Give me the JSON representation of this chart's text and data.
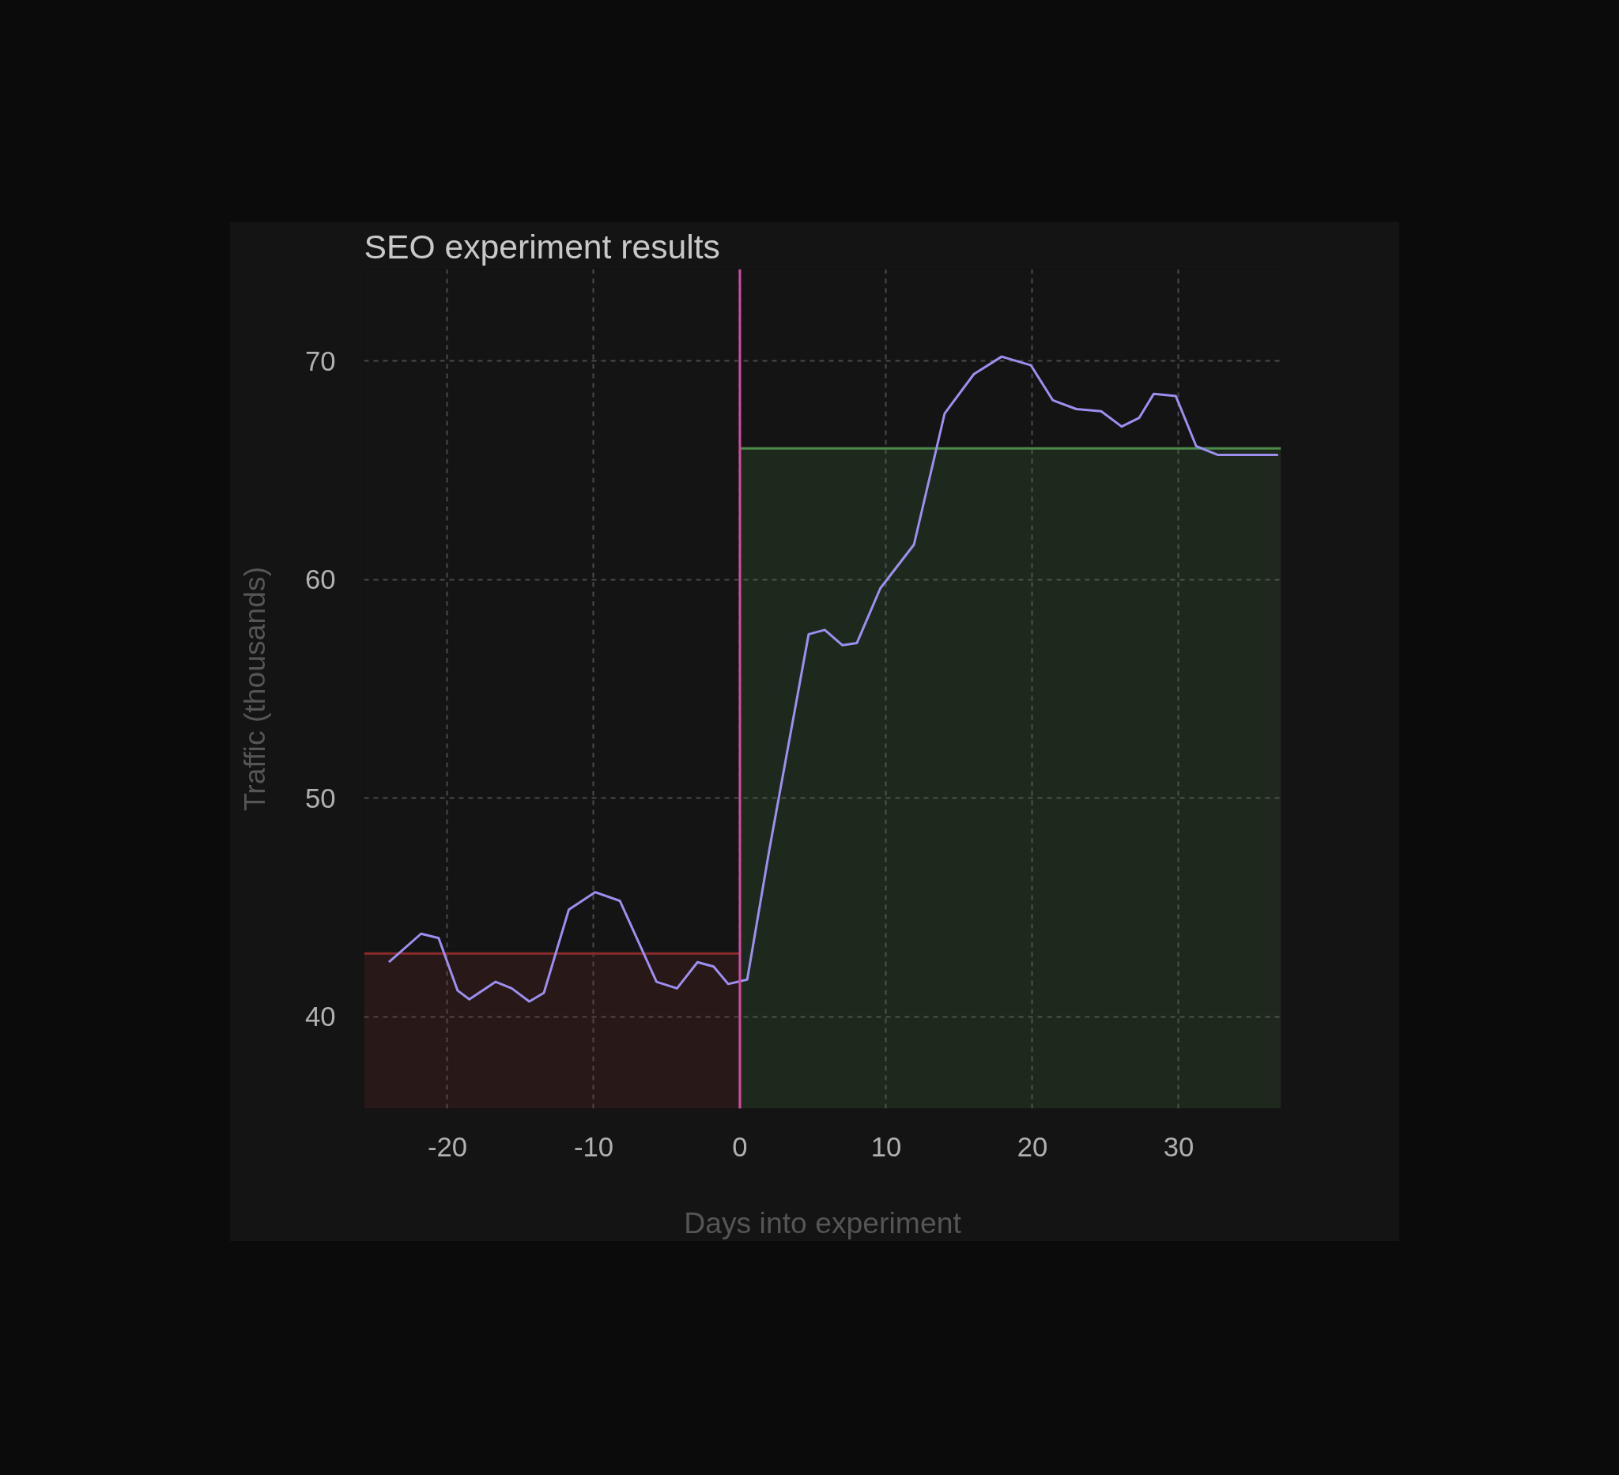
{
  "chart_data": {
    "type": "line",
    "title": "SEO experiment results",
    "xlabel": "Days into experiment",
    "ylabel": "Traffic (thousands)",
    "xlim": [
      -25.7,
      37
    ],
    "ylim": [
      35.8,
      74.2
    ],
    "xticks": [
      -20,
      -10,
      0,
      10,
      20,
      30
    ],
    "yticks": [
      40,
      50,
      60,
      70
    ],
    "grid": true,
    "series": [
      {
        "type": "area",
        "color": "#8b2b2b",
        "x": [
          -25.7,
          0
        ],
        "values": [
          42.9,
          42.9
        ]
      },
      {
        "type": "area",
        "color": "#4c8b4c",
        "x": [
          0,
          37
        ],
        "values": [
          66.0,
          66.0
        ]
      },
      {
        "color": "#9d8fef",
        "x": [
          -24,
          -21.8,
          -20.6,
          -19.3,
          -18.5,
          -16.7,
          -15.6,
          -14.4,
          -13.4,
          -11.7,
          -9.9,
          -8.2,
          -5.7,
          -4.3,
          -2.9,
          -1.8,
          -0.8,
          0.5,
          2.0,
          4.7,
          5.8,
          7.0,
          8.0,
          9.6,
          11.9,
          14.0,
          16.0,
          17.9,
          19.9,
          21.4,
          23.0,
          24.7,
          26.1,
          27.3,
          28.3,
          29.8,
          31.2,
          32.7,
          36.8
        ],
        "values": [
          42.5,
          43.8,
          43.6,
          41.2,
          40.8,
          41.6,
          41.3,
          40.7,
          41.1,
          44.9,
          45.7,
          45.3,
          41.6,
          41.3,
          42.5,
          42.3,
          41.5,
          41.7,
          47.6,
          57.5,
          57.7,
          57.0,
          57.1,
          59.6,
          61.6,
          67.6,
          69.4,
          70.2,
          69.8,
          68.2,
          67.8,
          67.7,
          67.0,
          67.4,
          68.5,
          68.4,
          66.1,
          65.7,
          65.7
        ]
      }
    ],
    "ref_lines": [
      {
        "axis": "x",
        "value": 0,
        "color": "#d04ca0"
      }
    ]
  }
}
